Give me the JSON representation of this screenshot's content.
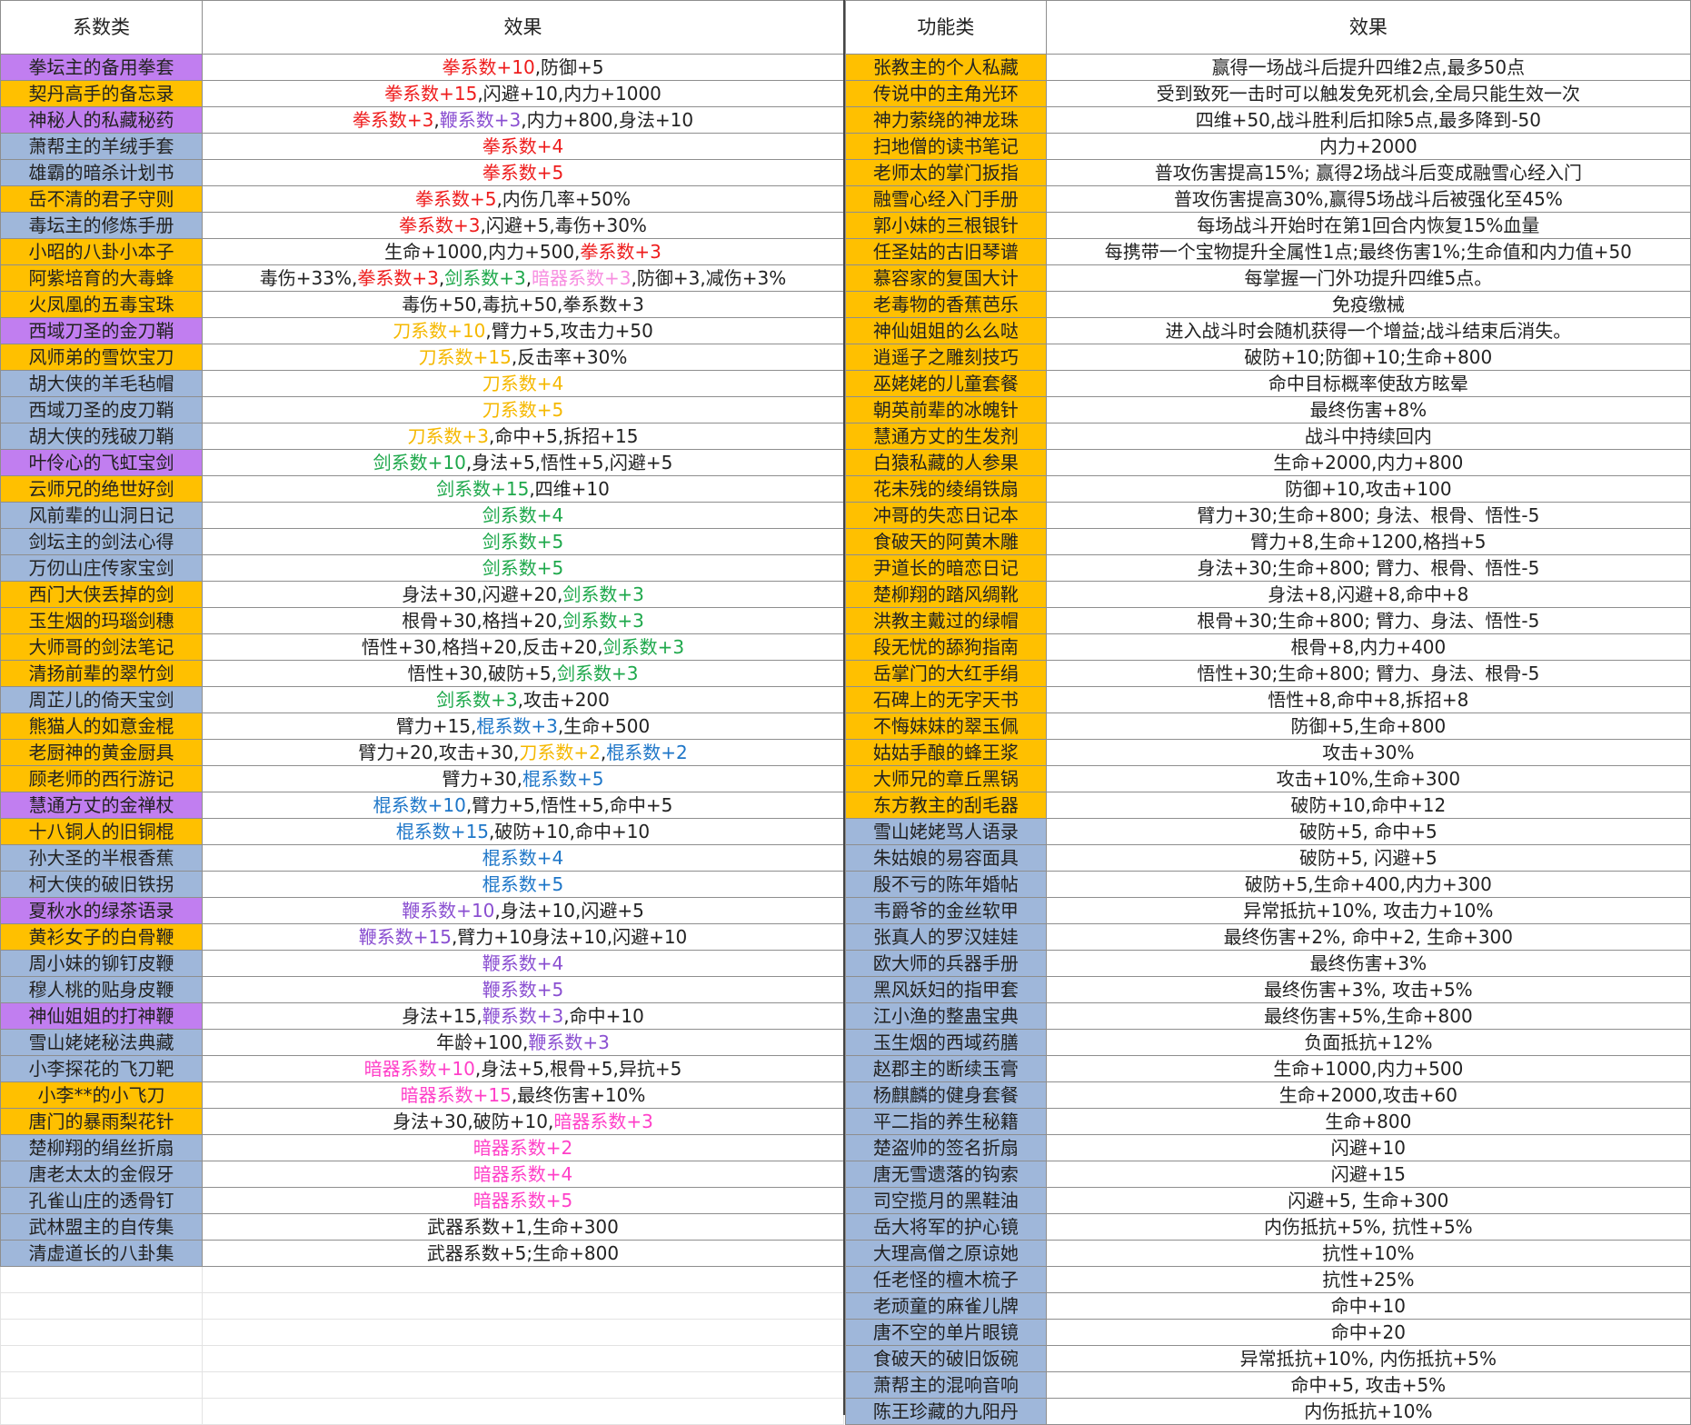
{
  "colors": {
    "purple": "#c17ef0",
    "orange": "#ffc000",
    "blue": "#9fb7da",
    "fist": "#ee1c1c",
    "blade": "#f5b800",
    "sword": "#1ea84b",
    "staff": "#1e76c8",
    "whip": "#8a4fd1",
    "hidden": "#ff3fc8",
    "plain": "#222222",
    "lightpink": "#f78ee0"
  },
  "left": {
    "headers": [
      "系数类",
      "效果"
    ],
    "rows": [
      {
        "name": "拳坛主的备用拳套",
        "bg": "purple",
        "effect": [
          [
            "拳系数+10",
            "fist"
          ],
          [
            ",防御+5",
            "plain"
          ]
        ]
      },
      {
        "name": "契丹高手的备忘录",
        "bg": "orange",
        "effect": [
          [
            "拳系数+15",
            "fist"
          ],
          [
            ",闪避+10,内力+1000",
            "plain"
          ]
        ]
      },
      {
        "name": "神秘人的私藏秘药",
        "bg": "purple",
        "effect": [
          [
            "拳系数+3",
            "fist"
          ],
          [
            ",",
            "plain"
          ],
          [
            "鞭系数+3",
            "whip"
          ],
          [
            ",内力+800,身法+10",
            "plain"
          ]
        ]
      },
      {
        "name": "萧帮主的羊绒手套",
        "bg": "blue",
        "effect": [
          [
            "拳系数+4",
            "fist"
          ]
        ]
      },
      {
        "name": "雄霸的暗杀计划书",
        "bg": "blue",
        "effect": [
          [
            "拳系数+5",
            "fist"
          ]
        ]
      },
      {
        "name": "岳不清的君子守则",
        "bg": "orange",
        "effect": [
          [
            "拳系数+5",
            "fist"
          ],
          [
            ",内伤几率+50%",
            "plain"
          ]
        ]
      },
      {
        "name": "毒坛主的修炼手册",
        "bg": "blue",
        "effect": [
          [
            "拳系数+3",
            "fist"
          ],
          [
            ",闪避+5,毒伤+30%",
            "plain"
          ]
        ]
      },
      {
        "name": "小昭的八卦小本子",
        "bg": "orange",
        "effect": [
          [
            "生命+1000,内力+500,",
            "plain"
          ],
          [
            "拳系数+3",
            "fist"
          ]
        ]
      },
      {
        "name": "阿紫培育的大毒蜂",
        "bg": "orange",
        "effect": [
          [
            "毒伤+33%,",
            "plain"
          ],
          [
            "拳系数+3",
            "fist"
          ],
          [
            ",",
            "plain"
          ],
          [
            "剑系数+3",
            "sword"
          ],
          [
            ",",
            "plain"
          ],
          [
            "暗器系数+3",
            "lightpink"
          ],
          [
            ",防御+3,减伤+3%",
            "plain"
          ]
        ]
      },
      {
        "name": "火凤凰的五毒宝珠",
        "bg": "orange",
        "effect": [
          [
            "毒伤+50,毒抗+50,拳系数+3",
            "plain"
          ]
        ]
      },
      {
        "name": "西域刀圣的金刀鞘",
        "bg": "purple",
        "effect": [
          [
            "刀系数+10",
            "blade"
          ],
          [
            ",臂力+5,攻击力+50",
            "plain"
          ]
        ]
      },
      {
        "name": "风师弟的雪饮宝刀",
        "bg": "orange",
        "effect": [
          [
            "刀系数+15",
            "blade"
          ],
          [
            ",反击率+30%",
            "plain"
          ]
        ]
      },
      {
        "name": "胡大侠的羊毛毡帽",
        "bg": "blue",
        "effect": [
          [
            "刀系数+4",
            "blade"
          ]
        ]
      },
      {
        "name": "西域刀圣的皮刀鞘",
        "bg": "blue",
        "effect": [
          [
            "刀系数+5",
            "blade"
          ]
        ]
      },
      {
        "name": "胡大侠的残破刀鞘",
        "bg": "blue",
        "effect": [
          [
            "刀系数+3",
            "blade"
          ],
          [
            ",命中+5,拆招+15",
            "plain"
          ]
        ]
      },
      {
        "name": "叶伶心的飞虹宝剑",
        "bg": "purple",
        "effect": [
          [
            "剑系数+10",
            "sword"
          ],
          [
            ",身法+5,悟性+5,闪避+5",
            "plain"
          ]
        ]
      },
      {
        "name": "云师兄的绝世好剑",
        "bg": "orange",
        "effect": [
          [
            "剑系数+15",
            "sword"
          ],
          [
            ",四维+10",
            "plain"
          ]
        ]
      },
      {
        "name": "风前辈的山洞日记",
        "bg": "blue",
        "effect": [
          [
            "剑系数+4",
            "sword"
          ]
        ]
      },
      {
        "name": "剑坛主的剑法心得",
        "bg": "blue",
        "effect": [
          [
            "剑系数+5",
            "sword"
          ]
        ]
      },
      {
        "name": "万仞山庄传家宝剑",
        "bg": "blue",
        "effect": [
          [
            "剑系数+5",
            "sword"
          ]
        ]
      },
      {
        "name": "西门大侠丢掉的剑",
        "bg": "orange",
        "effect": [
          [
            "身法+30,闪避+20,",
            "plain"
          ],
          [
            "剑系数+3",
            "sword"
          ]
        ]
      },
      {
        "name": "玉生烟的玛瑙剑穗",
        "bg": "orange",
        "effect": [
          [
            "根骨+30,格挡+20,",
            "plain"
          ],
          [
            "剑系数+3",
            "sword"
          ]
        ]
      },
      {
        "name": "大师哥的剑法笔记",
        "bg": "orange",
        "effect": [
          [
            "悟性+30,格挡+20,反击+20,",
            "plain"
          ],
          [
            "剑系数+3",
            "sword"
          ]
        ]
      },
      {
        "name": "清扬前辈的翠竹剑",
        "bg": "orange",
        "effect": [
          [
            "悟性+30,破防+5,",
            "plain"
          ],
          [
            "剑系数+3",
            "sword"
          ]
        ]
      },
      {
        "name": "周芷儿的倚天宝剑",
        "bg": "blue",
        "effect": [
          [
            "剑系数+3",
            "sword"
          ],
          [
            ",攻击+200",
            "plain"
          ]
        ]
      },
      {
        "name": "熊猫人的如意金棍",
        "bg": "orange",
        "effect": [
          [
            "臂力+15,",
            "plain"
          ],
          [
            "棍系数+3",
            "staff"
          ],
          [
            ",生命+500",
            "plain"
          ]
        ]
      },
      {
        "name": "老厨神的黄金厨具",
        "bg": "orange",
        "effect": [
          [
            "臂力+20,攻击+30,",
            "plain"
          ],
          [
            "刀系数+2",
            "blade"
          ],
          [
            ",",
            "plain"
          ],
          [
            "棍系数+2",
            "staff"
          ]
        ]
      },
      {
        "name": "顾老师的西行游记",
        "bg": "orange",
        "effect": [
          [
            "臂力+30,",
            "plain"
          ],
          [
            "棍系数+5",
            "staff"
          ]
        ]
      },
      {
        "name": "慧通方丈的金禅杖",
        "bg": "purple",
        "effect": [
          [
            "棍系数+10",
            "staff"
          ],
          [
            ",臂力+5,悟性+5,命中+5",
            "plain"
          ]
        ]
      },
      {
        "name": "十八铜人的旧铜棍",
        "bg": "orange",
        "effect": [
          [
            "棍系数+15",
            "staff"
          ],
          [
            ",破防+10,命中+10",
            "plain"
          ]
        ]
      },
      {
        "name": "孙大圣的半根香蕉",
        "bg": "blue",
        "effect": [
          [
            "棍系数+4",
            "staff"
          ]
        ]
      },
      {
        "name": "柯大侠的破旧铁拐",
        "bg": "blue",
        "effect": [
          [
            "棍系数+5",
            "staff"
          ]
        ]
      },
      {
        "name": "夏秋水的绿茶语录",
        "bg": "purple",
        "effect": [
          [
            "鞭系数+10",
            "whip"
          ],
          [
            ",身法+10,闪避+5",
            "plain"
          ]
        ]
      },
      {
        "name": "黄衫女子的白骨鞭",
        "bg": "orange",
        "effect": [
          [
            "鞭系数+15",
            "whip"
          ],
          [
            ",臂力+10身法+10,闪避+10",
            "plain"
          ]
        ]
      },
      {
        "name": "周小妹的铆钉皮鞭",
        "bg": "blue",
        "effect": [
          [
            "鞭系数+4",
            "whip"
          ]
        ]
      },
      {
        "name": "穆人桃的贴身皮鞭",
        "bg": "blue",
        "effect": [
          [
            "鞭系数+5",
            "whip"
          ]
        ]
      },
      {
        "name": "神仙姐姐的打神鞭",
        "bg": "purple",
        "effect": [
          [
            "身法+15,",
            "plain"
          ],
          [
            "鞭系数+3",
            "whip"
          ],
          [
            ",命中+10",
            "plain"
          ]
        ]
      },
      {
        "name": "雪山姥姥秘法典藏",
        "bg": "blue",
        "effect": [
          [
            "年龄+100,",
            "plain"
          ],
          [
            "鞭系数+3",
            "whip"
          ]
        ]
      },
      {
        "name": "小李探花的飞刀靶",
        "bg": "blue",
        "effect": [
          [
            "暗器系数+10",
            "hidden"
          ],
          [
            ",身法+5,根骨+5,异抗+5",
            "plain"
          ]
        ]
      },
      {
        "name": "小李**的小飞刀",
        "bg": "orange",
        "effect": [
          [
            "暗器系数+15",
            "hidden"
          ],
          [
            ",最终伤害+10%",
            "plain"
          ]
        ]
      },
      {
        "name": "唐门的暴雨梨花针",
        "bg": "orange",
        "effect": [
          [
            "身法+30,破防+10,",
            "plain"
          ],
          [
            "暗器系数+3",
            "hidden"
          ]
        ]
      },
      {
        "name": "楚柳翔的绢丝折扇",
        "bg": "blue",
        "effect": [
          [
            "暗器系数+2",
            "hidden"
          ]
        ]
      },
      {
        "name": "唐老太太的金假牙",
        "bg": "blue",
        "effect": [
          [
            "暗器系数+4",
            "hidden"
          ]
        ]
      },
      {
        "name": "孔雀山庄的透骨钉",
        "bg": "blue",
        "effect": [
          [
            "暗器系数+5",
            "hidden"
          ]
        ]
      },
      {
        "name": "武林盟主的自传集",
        "bg": "blue",
        "effect": [
          [
            "武器系数+1,生命+300",
            "plain"
          ]
        ]
      },
      {
        "name": "清虚道长的八卦集",
        "bg": "blue",
        "effect": [
          [
            "武器系数+5;生命+800",
            "plain"
          ]
        ]
      }
    ]
  },
  "right": {
    "headers": [
      "功能类",
      "效果"
    ],
    "rows": [
      {
        "name": "张教主的个人私藏",
        "bg": "orange",
        "effect": "赢得一场战斗后提升四维2点,最多50点"
      },
      {
        "name": "传说中的主角光环",
        "bg": "orange",
        "effect": "受到致死一击时可以触发免死机会,全局只能生效一次"
      },
      {
        "name": "神力萦绕的神龙珠",
        "bg": "orange",
        "effect": "四维+50,战斗胜利后扣除5点,最多降到-50"
      },
      {
        "name": "扫地僧的读书笔记",
        "bg": "orange",
        "effect": "内力+2000"
      },
      {
        "name": "老师太的掌门扳指",
        "bg": "orange",
        "effect": "普攻伤害提高15%; 赢得2场战斗后变成融雪心经入门"
      },
      {
        "name": "融雪心经入门手册",
        "bg": "orange",
        "effect": "普攻伤害提高30%,赢得5场战斗后被强化至45%"
      },
      {
        "name": "郭小妹的三根银针",
        "bg": "orange",
        "effect": "每场战斗开始时在第1回合内恢复15%血量"
      },
      {
        "name": "任圣姑的古旧琴谱",
        "bg": "orange",
        "effect": "每携带一个宝物提升全属性1点;最终伤害1%;生命值和内力值+50"
      },
      {
        "name": "慕容家的复国大计",
        "bg": "orange",
        "effect": "每掌握一门外功提升四维5点。"
      },
      {
        "name": "老毒物的香蕉芭乐",
        "bg": "orange",
        "effect": "免疫缴械"
      },
      {
        "name": "神仙姐姐的么么哒",
        "bg": "orange",
        "effect": "进入战斗时会随机获得一个增益;战斗结束后消失。"
      },
      {
        "name": "逍遥子之雕刻技巧",
        "bg": "orange",
        "effect": "破防+10;防御+10;生命+800"
      },
      {
        "name": "巫姥姥的儿童套餐",
        "bg": "orange",
        "effect": "命中目标概率使敌方眩晕"
      },
      {
        "name": "朝英前辈的冰魄针",
        "bg": "orange",
        "effect": "最终伤害+8%"
      },
      {
        "name": "慧通方丈的生发剂",
        "bg": "orange",
        "effect": "战斗中持续回内"
      },
      {
        "name": "白猿私藏的人参果",
        "bg": "orange",
        "effect": "生命+2000,内力+800"
      },
      {
        "name": "花未残的绫绢铁扇",
        "bg": "orange",
        "effect": "防御+10,攻击+100"
      },
      {
        "name": "冲哥的失恋日记本",
        "bg": "orange",
        "effect": "臂力+30;生命+800; 身法、根骨、悟性-5"
      },
      {
        "name": "食破天的阿黄木雕",
        "bg": "orange",
        "effect": "臂力+8,生命+1200,格挡+5"
      },
      {
        "name": "尹道长的暗恋日记",
        "bg": "orange",
        "effect": "身法+30;生命+800; 臂力、根骨、悟性-5"
      },
      {
        "name": "楚柳翔的踏风绸靴",
        "bg": "orange",
        "effect": "身法+8,闪避+8,命中+8"
      },
      {
        "name": "洪教主戴过的绿帽",
        "bg": "orange",
        "effect": "根骨+30;生命+800; 臂力、身法、悟性-5"
      },
      {
        "name": "段无忧的舔狗指南",
        "bg": "orange",
        "effect": "根骨+8,内力+400"
      },
      {
        "name": "岳掌门的大红手绢",
        "bg": "orange",
        "effect": "悟性+30;生命+800; 臂力、身法、根骨-5"
      },
      {
        "name": "石碑上的无字天书",
        "bg": "orange",
        "effect": "悟性+8,命中+8,拆招+8"
      },
      {
        "name": "不悔妹妹的翠玉佩",
        "bg": "orange",
        "effect": "防御+5,生命+800"
      },
      {
        "name": "姑姑手酿的蜂王浆",
        "bg": "orange",
        "effect": "攻击+30%"
      },
      {
        "name": "大师兄的章丘黑锅",
        "bg": "orange",
        "effect": "攻击+10%,生命+300"
      },
      {
        "name": "东方教主的刮毛器",
        "bg": "orange",
        "effect": "破防+10,命中+12"
      },
      {
        "name": "雪山姥姥骂人语录",
        "bg": "blue",
        "effect": "破防+5, 命中+5"
      },
      {
        "name": "朱姑娘的易容面具",
        "bg": "blue",
        "effect": "破防+5, 闪避+5"
      },
      {
        "name": "殷不亏的陈年婚帖",
        "bg": "blue",
        "effect": "破防+5,生命+400,内力+300"
      },
      {
        "name": "韦爵爷的金丝软甲",
        "bg": "blue",
        "effect": "异常抵抗+10%, 攻击力+10%"
      },
      {
        "name": "张真人的罗汉娃娃",
        "bg": "blue",
        "effect": "最终伤害+2%, 命中+2, 生命+300"
      },
      {
        "name": "欧大师的兵器手册",
        "bg": "blue",
        "effect": "最终伤害+3%"
      },
      {
        "name": "黑风妖妇的指甲套",
        "bg": "blue",
        "effect": "最终伤害+3%, 攻击+5%"
      },
      {
        "name": "江小渔的整蛊宝典",
        "bg": "blue",
        "effect": "最终伤害+5%,生命+800"
      },
      {
        "name": "玉生烟的西域药膳",
        "bg": "blue",
        "effect": "负面抵抗+12%"
      },
      {
        "name": "赵郡主的断续玉膏",
        "bg": "blue",
        "effect": "生命+1000,内力+500"
      },
      {
        "name": "杨麒麟的健身套餐",
        "bg": "blue",
        "effect": "生命+2000,攻击+60"
      },
      {
        "name": "平二指的养生秘籍",
        "bg": "blue",
        "effect": "生命+800"
      },
      {
        "name": "楚盗帅的签名折扇",
        "bg": "blue",
        "effect": "闪避+10"
      },
      {
        "name": "唐无雪遗落的钩索",
        "bg": "blue",
        "effect": "闪避+15"
      },
      {
        "name": "司空揽月的黑鞋油",
        "bg": "blue",
        "effect": "闪避+5, 生命+300"
      },
      {
        "name": "岳大将军的护心镜",
        "bg": "blue",
        "effect": "内伤抵抗+5%, 抗性+5%"
      },
      {
        "name": "大理高僧之原谅她",
        "bg": "blue",
        "effect": "抗性+10%"
      },
      {
        "name": "任老怪的檀木梳子",
        "bg": "blue",
        "effect": "抗性+25%"
      },
      {
        "name": "老顽童的麻雀儿牌",
        "bg": "blue",
        "effect": "命中+10"
      },
      {
        "name": "唐不空的单片眼镜",
        "bg": "blue",
        "effect": "命中+20"
      },
      {
        "name": "食破天的破旧饭碗",
        "bg": "blue",
        "effect": "异常抵抗+10%, 内伤抵抗+5%"
      },
      {
        "name": "萧帮主的混响音响",
        "bg": "blue",
        "effect": "命中+5, 攻击+5%"
      },
      {
        "name": "陈王珍藏的九阳丹",
        "bg": "blue",
        "effect": "内伤抵抗+10%"
      }
    ]
  }
}
